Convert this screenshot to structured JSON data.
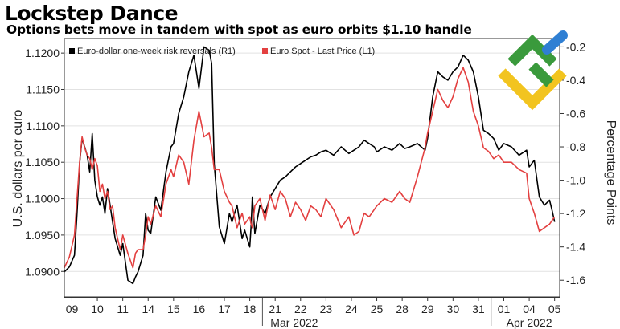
{
  "header": {
    "title": "Lockstep Dance",
    "subtitle": "Options bets move in tandem with spot as euro orbits $1.10 handle"
  },
  "chart_data": {
    "type": "line",
    "title": "Lockstep Dance",
    "subtitle": "Options bets move in tandem with spot as euro orbits $1.10 handle",
    "y_left": {
      "label": "U.S. dollars per euro",
      "range": [
        1.0865,
        1.122
      ],
      "ticks": [
        1.09,
        1.095,
        1.1,
        1.105,
        1.11,
        1.115,
        1.12
      ],
      "tick_labels": [
        "1.0900",
        "1.0950",
        "1.1000",
        "1.1050",
        "1.1100",
        "1.1150",
        "1.1200"
      ]
    },
    "y_right": {
      "label": "Percentage Points",
      "range": [
        -1.7,
        -0.15
      ],
      "inverted": true,
      "ticks": [
        -0.2,
        -0.4,
        -0.6,
        -0.8,
        -1.0,
        -1.2,
        -1.4,
        -1.6
      ],
      "tick_labels": [
        "-0.2",
        "-0.4",
        "-0.6",
        "-0.8",
        "-1.0",
        "-1.2",
        "-1.4",
        "-1.6"
      ]
    },
    "x": {
      "labels": [
        "09",
        "10",
        "11",
        "14",
        "15",
        "16",
        "17",
        "18",
        "21",
        "22",
        "23",
        "24",
        "25",
        "28",
        "29",
        "30",
        "31",
        "01",
        "04",
        "05"
      ],
      "months": [
        "Mar 2022",
        "Apr 2022"
      ],
      "range": [
        -0.3,
        19.2
      ]
    },
    "legend_position": "top-left",
    "series": [
      {
        "name": "Euro-dollar one-week risk reversals (R1)",
        "axis": "right",
        "color": "#000000",
        "x": [
          -0.3,
          -0.1,
          0.1,
          0.2,
          0.3,
          0.4,
          0.5,
          0.6,
          0.7,
          0.8,
          0.9,
          1.0,
          1.1,
          1.2,
          1.3,
          1.4,
          1.5,
          1.6,
          1.7,
          1.8,
          1.9,
          2.0,
          2.2,
          2.4,
          2.5,
          2.6,
          2.8,
          2.9,
          3.0,
          3.1,
          3.3,
          3.5,
          3.7,
          3.9,
          4.0,
          4.2,
          4.4,
          4.6,
          4.8,
          5.0,
          5.2,
          5.4,
          5.5,
          5.6,
          5.8,
          6.0,
          6.2,
          6.3,
          6.5,
          6.7,
          6.8,
          7.0,
          7.05,
          7.1,
          7.2,
          7.4,
          7.6,
          7.8,
          8.0,
          8.2,
          8.4,
          8.6,
          8.8,
          9.0,
          9.2,
          9.4,
          9.6,
          9.8,
          10.0,
          10.3,
          10.6,
          10.9,
          11.1,
          11.3,
          11.5,
          11.7,
          11.9,
          12.0,
          12.3,
          12.6,
          12.9,
          13.1,
          13.3,
          13.6,
          13.9,
          14.0,
          14.2,
          14.4,
          14.6,
          14.8,
          15.0,
          15.2,
          15.4,
          15.6,
          15.8,
          16.0,
          16.2,
          16.4,
          16.6,
          16.8,
          17.0,
          17.3,
          17.6,
          17.9,
          18.0,
          18.2,
          18.4,
          18.6,
          18.8,
          18.9,
          19.0
        ],
        "values": [
          -1.55,
          -1.52,
          -1.45,
          -1.2,
          -0.9,
          -0.75,
          -0.8,
          -0.85,
          -0.95,
          -0.72,
          -1.0,
          -1.1,
          -1.15,
          -1.1,
          -1.2,
          -1.05,
          -1.15,
          -1.25,
          -1.35,
          -1.4,
          -1.45,
          -1.38,
          -1.6,
          -1.62,
          -1.58,
          -1.55,
          -1.45,
          -1.2,
          -1.3,
          -1.32,
          -1.1,
          -1.18,
          -0.95,
          -0.8,
          -0.78,
          -0.6,
          -0.5,
          -0.35,
          -0.25,
          -0.45,
          -0.2,
          -0.22,
          -0.3,
          -0.9,
          -1.28,
          -1.38,
          -1.2,
          -1.25,
          -1.15,
          -1.35,
          -1.3,
          -1.4,
          -1.28,
          -1.1,
          -1.32,
          -1.15,
          -1.2,
          -1.1,
          -1.05,
          -1.0,
          -0.98,
          -0.95,
          -0.92,
          -0.9,
          -0.88,
          -0.86,
          -0.85,
          -0.83,
          -0.82,
          -0.85,
          -0.8,
          -0.84,
          -0.82,
          -0.8,
          -0.76,
          -0.78,
          -0.8,
          -0.83,
          -0.8,
          -0.82,
          -0.78,
          -0.81,
          -0.8,
          -0.78,
          -0.82,
          -0.75,
          -0.5,
          -0.35,
          -0.38,
          -0.4,
          -0.35,
          -0.32,
          -0.25,
          -0.28,
          -0.35,
          -0.5,
          -0.7,
          -0.72,
          -0.75,
          -0.82,
          -0.78,
          -0.8,
          -0.85,
          -0.82,
          -0.92,
          -0.88,
          -1.1,
          -1.15,
          -1.12,
          -1.18,
          -1.25
        ]
      },
      {
        "name": "Euro Spot - Last Price (L1)",
        "axis": "left",
        "color": "#e34040",
        "x": [
          -0.3,
          -0.1,
          0.1,
          0.2,
          0.3,
          0.4,
          0.5,
          0.6,
          0.7,
          0.8,
          0.9,
          1.0,
          1.1,
          1.2,
          1.3,
          1.4,
          1.5,
          1.6,
          1.7,
          1.8,
          1.9,
          2.0,
          2.2,
          2.4,
          2.5,
          2.6,
          2.8,
          2.9,
          3.0,
          3.1,
          3.3,
          3.5,
          3.7,
          3.9,
          4.0,
          4.2,
          4.4,
          4.6,
          4.8,
          5.0,
          5.2,
          5.4,
          5.5,
          5.6,
          5.8,
          6.0,
          6.2,
          6.3,
          6.5,
          6.7,
          6.8,
          7.0,
          7.05,
          7.1,
          7.2,
          7.4,
          7.6,
          7.8,
          8.0,
          8.2,
          8.4,
          8.6,
          8.8,
          9.0,
          9.2,
          9.4,
          9.6,
          9.8,
          10.0,
          10.3,
          10.6,
          10.9,
          11.1,
          11.3,
          11.5,
          11.7,
          11.9,
          12.0,
          12.3,
          12.6,
          12.9,
          13.1,
          13.3,
          13.6,
          13.9,
          14.0,
          14.2,
          14.4,
          14.6,
          14.8,
          15.0,
          15.2,
          15.4,
          15.6,
          15.8,
          16.0,
          16.2,
          16.4,
          16.6,
          16.8,
          17.0,
          17.3,
          17.6,
          17.9,
          18.0,
          18.2,
          18.4,
          18.6,
          18.8,
          18.9,
          19.0
        ],
        "values": [
          1.0905,
          1.092,
          1.095,
          1.1,
          1.105,
          1.1085,
          1.107,
          1.106,
          1.1055,
          1.104,
          1.1055,
          1.1045,
          1.101,
          1.102,
          1.1,
          1.101,
          1.0985,
          1.099,
          1.096,
          1.0945,
          1.093,
          1.095,
          1.0925,
          1.0905,
          1.0925,
          1.093,
          1.093,
          1.095,
          1.0975,
          1.0965,
          1.099,
          1.0975,
          1.102,
          1.104,
          1.103,
          1.106,
          1.105,
          1.102,
          1.108,
          1.112,
          1.1085,
          1.109,
          1.107,
          1.104,
          1.104,
          1.101,
          1.0995,
          1.099,
          1.096,
          1.098,
          1.0965,
          1.0975,
          1.0965,
          1.096,
          1.099,
          1.1,
          1.097,
          1.1005,
          1.0985,
          1.101,
          1.1,
          1.0975,
          1.0995,
          1.0985,
          1.097,
          1.099,
          1.0985,
          1.0975,
          1.1,
          1.0985,
          1.096,
          1.0975,
          1.095,
          1.0955,
          1.098,
          1.0975,
          1.0985,
          1.099,
          1.1,
          1.0995,
          1.101,
          1.1,
          1.0995,
          1.103,
          1.107,
          1.109,
          1.112,
          1.115,
          1.1135,
          1.1125,
          1.114,
          1.1165,
          1.118,
          1.116,
          1.112,
          1.11,
          1.107,
          1.1065,
          1.1055,
          1.106,
          1.105,
          1.105,
          1.104,
          1.1035,
          1.1,
          1.098,
          1.0955,
          1.096,
          1.0965,
          1.097,
          1.0975
        ]
      }
    ]
  }
}
